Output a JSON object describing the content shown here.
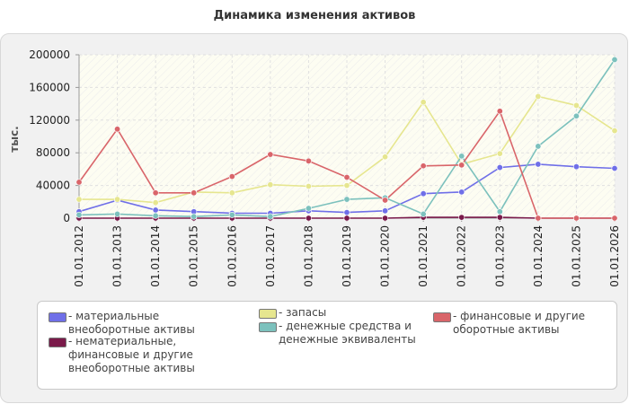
{
  "title": "Динамика изменения активов",
  "chart_data": {
    "type": "line",
    "title": "Динамика изменения активов",
    "ylabel": "тыс.",
    "xlabel": "",
    "ylim": [
      0,
      200000
    ],
    "yticks": [
      "0",
      "40000",
      "80000",
      "120000",
      "160000",
      "200000"
    ],
    "ytick_values": [
      0,
      40000,
      80000,
      120000,
      160000,
      200000
    ],
    "grid": true,
    "legend_position": "bottom",
    "categories": [
      "01.01.2012",
      "01.01.2013",
      "01.01.2014",
      "01.01.2015",
      "01.01.2016",
      "01.01.2017",
      "01.01.2018",
      "01.01.2019",
      "01.01.2020",
      "01.01.2021",
      "01.01.2022",
      "01.01.2023",
      "01.01.2024",
      "01.01.2025",
      "01.01.2026"
    ],
    "series": [
      {
        "name": "материальные внеоборотные активы",
        "color": "#6f6fe8",
        "values": [
          8000,
          22000,
          10000,
          8000,
          6000,
          6000,
          9000,
          7000,
          9000,
          30000,
          32000,
          62000,
          66000,
          63000,
          61000
        ]
      },
      {
        "name": "нематериальные, финансовые и другие внеоборотные активы",
        "color": "#7a1a4a",
        "values": [
          0,
          0,
          0,
          0,
          0,
          0,
          0,
          0,
          0,
          1000,
          1000,
          1000,
          0,
          0,
          0
        ]
      },
      {
        "name": "запасы",
        "color": "#e6e68f",
        "values": [
          23000,
          23000,
          19000,
          32000,
          31000,
          41000,
          39000,
          40000,
          75000,
          142000,
          66000,
          79000,
          149000,
          138000,
          107000
        ]
      },
      {
        "name": "денежные средства и денежные эквиваленты",
        "color": "#7cc1bd",
        "values": [
          4000,
          5000,
          3000,
          2000,
          4000,
          2000,
          12000,
          23000,
          25000,
          5000,
          76000,
          8000,
          88000,
          125000,
          194000
        ]
      },
      {
        "name": "финансовые и другие оборотные активы",
        "color": "#d9656a",
        "values": [
          44000,
          109000,
          31000,
          31000,
          51000,
          78000,
          70000,
          50000,
          22000,
          64000,
          65000,
          131000,
          0,
          0,
          0
        ]
      }
    ]
  }
}
